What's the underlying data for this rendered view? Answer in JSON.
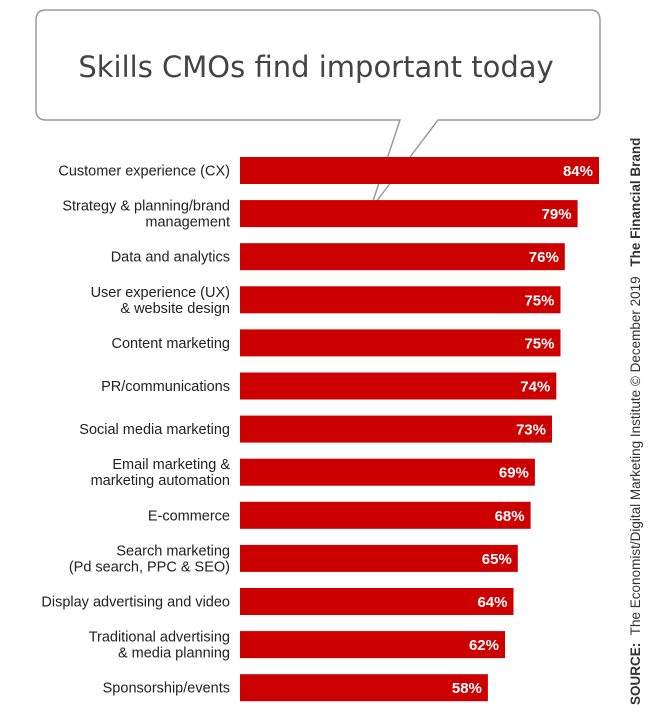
{
  "chart_data": {
    "type": "bar",
    "orientation": "horizontal",
    "title": "Skills CMOs find important today",
    "categories": [
      [
        "Customer experience (CX)"
      ],
      [
        "Strategy & planning/brand",
        "management"
      ],
      [
        "Data and analytics"
      ],
      [
        "User experience (UX)",
        "& website design"
      ],
      [
        "Content marketing"
      ],
      [
        "PR/communications"
      ],
      [
        "Social media marketing"
      ],
      [
        "Email marketing &",
        "marketing automation"
      ],
      [
        "E-commerce"
      ],
      [
        "Search marketing",
        "(Pd search, PPC & SEO)"
      ],
      [
        "Display advertising and video"
      ],
      [
        "Traditional advertising",
        "& media planning"
      ],
      [
        "Sponsorship/events"
      ]
    ],
    "values": [
      84,
      79,
      76,
      75,
      75,
      74,
      73,
      69,
      68,
      65,
      64,
      62,
      58
    ],
    "value_labels": [
      "84%",
      "79%",
      "76%",
      "75%",
      "75%",
      "74%",
      "73%",
      "69%",
      "68%",
      "65%",
      "64%",
      "62%",
      "58%"
    ],
    "xlabel": "",
    "ylabel": "",
    "xlim": [
      0,
      84
    ],
    "grid": false,
    "bar_color": "#cc0000"
  },
  "source": {
    "prefix": "SOURCE:",
    "text": "The Economist/Digital Marketing Institute © December 2019",
    "brand": "The Financial Brand"
  },
  "colors": {
    "bar": "#cc0000",
    "bubble_border": "#9a9a9a",
    "bubble_fill": "#ffffff"
  }
}
